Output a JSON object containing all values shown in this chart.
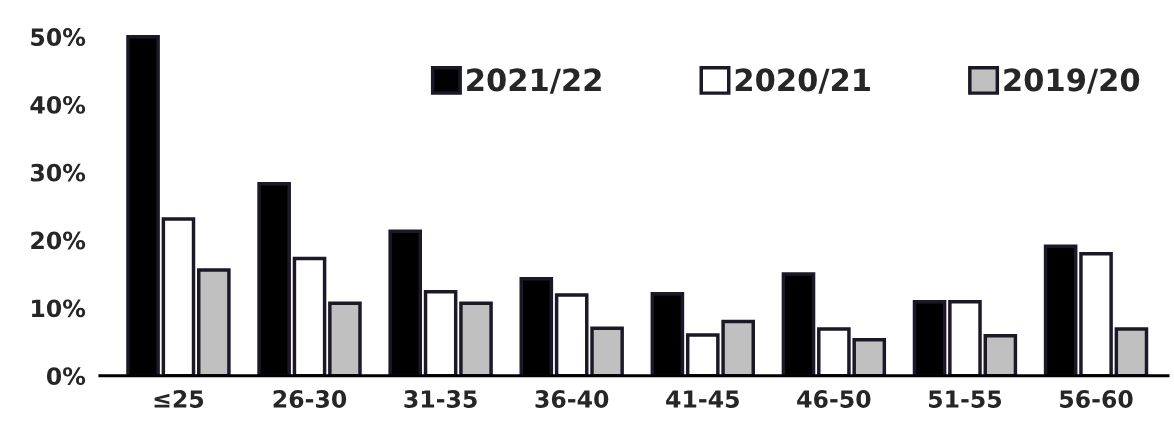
{
  "chart_data": {
    "type": "bar",
    "categories": [
      "≤25",
      "26-30",
      "31-35",
      "36-40",
      "41-45",
      "46-50",
      "51-55",
      "56-60"
    ],
    "series": [
      {
        "name": "2021/22",
        "color": "#000000",
        "values": [
          50,
          28.3,
          21.3,
          14.3,
          12.1,
          15,
          10.9,
          19.1
        ]
      },
      {
        "name": "2020/21",
        "color": "#ffffff",
        "values": [
          23.1,
          17.3,
          12.4,
          11.9,
          6,
          6.9,
          10.9,
          18
        ]
      },
      {
        "name": "2019/20",
        "color": "#c0c0c0",
        "values": [
          15.6,
          10.7,
          10.7,
          7,
          8,
          5.3,
          5.9,
          6.9
        ]
      }
    ],
    "ylim": [
      0,
      51
    ],
    "yticks": [
      {
        "value": 0,
        "label": "0%"
      },
      {
        "value": 10,
        "label": "10%"
      },
      {
        "value": 20,
        "label": "20%"
      },
      {
        "value": 30,
        "label": "30%"
      },
      {
        "value": 40,
        "label": "40%"
      },
      {
        "value": 50,
        "label": "50%"
      }
    ],
    "grid": false,
    "legend": "top right"
  }
}
